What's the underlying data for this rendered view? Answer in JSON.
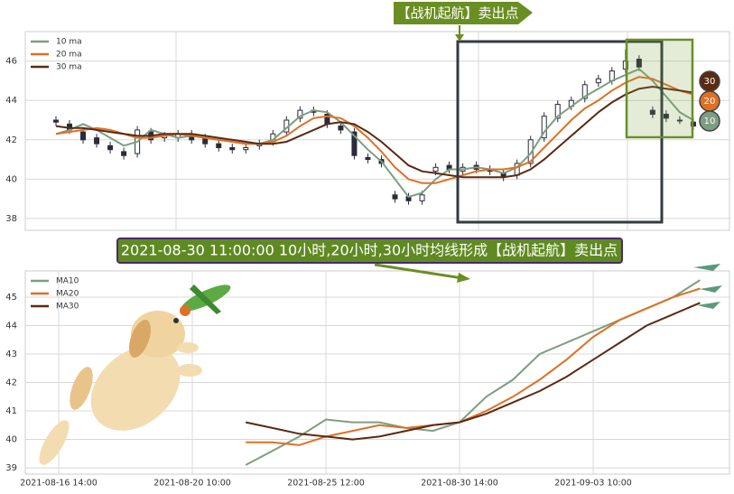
{
  "chart_data": [
    {
      "type": "candlestick",
      "candle_color": "#2b2b3b",
      "candles": {
        "open": [
          43.0,
          42.8,
          42.4,
          42.1,
          41.7,
          41.4,
          41.3,
          42.4,
          42.1,
          42.1,
          42.3,
          42.1,
          41.8,
          41.6,
          41.5,
          41.7,
          41.9,
          42.4,
          43.1,
          43.5,
          43.3,
          42.7,
          42.4,
          41.1,
          41.0,
          39.2,
          39.1,
          38.9,
          40.4,
          40.7,
          40.4,
          40.7,
          40.5,
          40.3,
          40.2,
          40.8,
          42.1,
          43.1,
          43.7,
          44.1,
          44.9,
          45.0,
          45.6,
          46.1,
          43.5,
          43.3,
          43.0,
          42.9
        ],
        "high": [
          43.2,
          43.0,
          42.6,
          42.3,
          41.9,
          41.6,
          42.7,
          42.6,
          42.4,
          42.5,
          42.5,
          42.3,
          42.0,
          41.8,
          41.8,
          42.0,
          42.5,
          43.2,
          43.7,
          43.7,
          43.5,
          42.9,
          42.6,
          41.3,
          41.2,
          39.4,
          39.3,
          39.4,
          40.8,
          40.9,
          40.8,
          40.9,
          40.7,
          40.5,
          41.0,
          42.2,
          43.4,
          44.0,
          44.2,
          45.0,
          45.3,
          45.7,
          46.6,
          46.3,
          43.7,
          43.5,
          43.2,
          43.1
        ],
        "low": [
          42.7,
          42.3,
          41.8,
          41.6,
          41.3,
          41.0,
          41.1,
          41.8,
          41.9,
          41.9,
          41.8,
          41.6,
          41.4,
          41.3,
          41.3,
          41.5,
          41.7,
          42.2,
          42.9,
          43.2,
          42.6,
          42.3,
          41.0,
          40.8,
          40.6,
          38.8,
          38.7,
          38.7,
          40.2,
          40.3,
          40.2,
          40.3,
          40.2,
          39.9,
          40.0,
          40.6,
          41.9,
          42.9,
          43.5,
          43.9,
          44.7,
          44.8,
          45.4,
          45.5,
          43.1,
          42.9,
          42.8,
          42.5
        ],
        "close": [
          42.9,
          42.5,
          42.0,
          41.8,
          41.5,
          41.2,
          42.5,
          42.0,
          42.2,
          42.3,
          42.0,
          41.8,
          41.6,
          41.5,
          41.6,
          41.8,
          42.3,
          43.0,
          43.5,
          43.4,
          42.8,
          42.5,
          41.2,
          41.0,
          40.8,
          39.0,
          38.9,
          39.2,
          40.6,
          40.5,
          40.6,
          40.5,
          40.4,
          40.1,
          40.8,
          42.0,
          43.2,
          43.8,
          44.0,
          44.8,
          45.1,
          45.5,
          46.0,
          45.7,
          43.3,
          43.1,
          43.0,
          42.7
        ]
      },
      "series": [
        {
          "name": "10 ma",
          "tag": "10",
          "color": "#7d9e82",
          "values": [
            42.3,
            42.5,
            42.8,
            42.5,
            42.1,
            41.7,
            41.9,
            42.5,
            42.3,
            42.1,
            42.2,
            42.1,
            42.0,
            41.9,
            41.8,
            41.8,
            42.0,
            42.6,
            43.2,
            43.5,
            43.4,
            42.9,
            42.2,
            41.5,
            40.9,
            40.0,
            39.1,
            39.3,
            40.0,
            40.5,
            40.5,
            40.6,
            40.5,
            40.3,
            40.6,
            41.3,
            42.4,
            43.2,
            43.7,
            44.2,
            44.6,
            45.0,
            45.3,
            45.6,
            45.0,
            44.2,
            43.4,
            43.0
          ]
        },
        {
          "name": "20 ma",
          "tag": "20",
          "color": "#e07024",
          "values": [
            42.3,
            42.4,
            42.5,
            42.6,
            42.5,
            42.3,
            42.1,
            42.1,
            42.2,
            42.3,
            42.2,
            42.1,
            42.0,
            41.9,
            41.8,
            41.8,
            41.9,
            42.2,
            42.7,
            43.1,
            43.2,
            43.1,
            42.7,
            42.1,
            41.4,
            40.6,
            40.0,
            39.8,
            39.8,
            40.0,
            40.2,
            40.4,
            40.5,
            40.5,
            40.6,
            40.9,
            41.6,
            42.3,
            43.0,
            43.6,
            44.0,
            44.5,
            44.9,
            45.2,
            45.1,
            44.8,
            44.5,
            44.3
          ]
        },
        {
          "name": "30 ma",
          "tag": "30",
          "color": "#5a2a12",
          "values": [
            42.7,
            42.6,
            42.6,
            42.5,
            42.4,
            42.3,
            42.2,
            42.2,
            42.3,
            42.3,
            42.3,
            42.2,
            42.1,
            42.0,
            41.9,
            41.8,
            41.8,
            41.9,
            42.2,
            42.5,
            42.8,
            42.9,
            42.8,
            42.4,
            41.9,
            41.3,
            40.7,
            40.4,
            40.3,
            40.2,
            40.1,
            40.1,
            40.1,
            40.1,
            40.2,
            40.5,
            41.0,
            41.6,
            42.2,
            42.8,
            43.4,
            43.9,
            44.3,
            44.6,
            44.7,
            44.6,
            44.5,
            44.4
          ]
        }
      ],
      "ylim": [
        37.4,
        47.5
      ],
      "yticks": [
        38,
        40,
        42,
        44,
        46
      ],
      "grid": true,
      "legend": "upper left",
      "annotation": "【战机起航】卖出点"
    },
    {
      "type": "line",
      "title": "2021-08-30 11:00:00 10小时,20小时,30小时均线形成【战机起航】卖出点",
      "categories": [
        "2021-08-16 14:00",
        null,
        null,
        null,
        null,
        "2021-08-20 10:00",
        null,
        null,
        null,
        null,
        "2021-08-25 12:00",
        null,
        null,
        null,
        null,
        "2021-08-30 14:00",
        null,
        null,
        null,
        null,
        "2021-09-03 10:00",
        null,
        null,
        null,
        null
      ],
      "series": [
        {
          "name": "MA10",
          "color": "#7d9e82",
          "values": [
            null,
            null,
            null,
            null,
            null,
            null,
            null,
            39.1,
            39.6,
            40.1,
            40.7,
            40.6,
            40.6,
            40.4,
            40.3,
            40.6,
            41.5,
            42.1,
            43.0,
            43.4,
            43.8,
            44.2,
            44.6,
            45.0,
            45.6
          ]
        },
        {
          "name": "MA20",
          "color": "#e07024",
          "values": [
            null,
            null,
            null,
            null,
            null,
            null,
            null,
            39.9,
            39.9,
            39.8,
            40.1,
            40.3,
            40.5,
            40.4,
            40.5,
            40.6,
            41.0,
            41.5,
            42.1,
            42.8,
            43.6,
            44.2,
            44.6,
            45.0,
            45.3
          ]
        },
        {
          "name": "MA30",
          "color": "#5a2a12",
          "values": [
            null,
            null,
            null,
            null,
            null,
            null,
            null,
            40.6,
            40.4,
            40.2,
            40.1,
            40.0,
            40.1,
            40.3,
            40.5,
            40.6,
            40.9,
            41.3,
            41.7,
            42.2,
            42.8,
            43.4,
            44.0,
            44.4,
            44.8
          ]
        }
      ],
      "ylim": [
        38.78,
        45.92
      ],
      "yticks": [
        39,
        40,
        41,
        42,
        43,
        44,
        45
      ],
      "grid": true,
      "legend": "upper left"
    }
  ]
}
